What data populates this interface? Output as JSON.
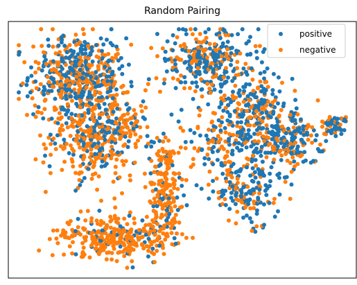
{
  "chart_data": {
    "type": "scatter",
    "title": "Random Pairing",
    "xlabel": "",
    "ylabel": "",
    "xlim": [
      0,
      100
    ],
    "ylim": [
      0,
      100
    ],
    "axes_ticks": "none",
    "grid": false,
    "legend_position": "top-right",
    "series": [
      {
        "name": "positive",
        "color": "#1f77b4"
      },
      {
        "name": "negative",
        "color": "#ff7f0e"
      }
    ],
    "clusters": [
      {
        "label": "left-upper",
        "cx": 20,
        "cy": 79,
        "sx": 7,
        "sy": 8,
        "n": 520,
        "positive_fraction": 0.5
      },
      {
        "label": "left-lower-body",
        "cx": 25,
        "cy": 55,
        "sx": 7,
        "sy": 9,
        "n": 380,
        "positive_fraction": 0.3
      },
      {
        "label": "left-bridge",
        "cx": 35,
        "cy": 62,
        "sx": 3,
        "sy": 3,
        "n": 40,
        "positive_fraction": 0.4
      },
      {
        "label": "bottom-bowl",
        "cx": 30,
        "cy": 16,
        "sx": 8,
        "sy": 4,
        "n": 300,
        "positive_fraction": 0.15
      },
      {
        "label": "diagonal-stem",
        "cx": 45,
        "cy": 35,
        "sx": 2.5,
        "sy": 11,
        "n": 220,
        "positive_fraction": 0.15
      },
      {
        "label": "right-top",
        "cx": 58,
        "cy": 84,
        "sx": 7,
        "sy": 7,
        "n": 320,
        "positive_fraction": 0.65
      },
      {
        "label": "right-middle",
        "cx": 67,
        "cy": 55,
        "sx": 8,
        "sy": 8,
        "n": 300,
        "positive_fraction": 0.6
      },
      {
        "label": "right-lower",
        "cx": 68,
        "cy": 34,
        "sx": 5,
        "sy": 6,
        "n": 160,
        "positive_fraction": 0.6
      },
      {
        "label": "right-inner",
        "cx": 72,
        "cy": 68,
        "sx": 4,
        "sy": 6,
        "n": 120,
        "positive_fraction": 0.6
      },
      {
        "label": "far-right",
        "cx": 83,
        "cy": 54,
        "sx": 4,
        "sy": 5,
        "n": 150,
        "positive_fraction": 0.6
      },
      {
        "label": "far-right-tip",
        "cx": 94,
        "cy": 60,
        "sx": 2,
        "sy": 2,
        "n": 60,
        "positive_fraction": 0.6
      }
    ]
  }
}
